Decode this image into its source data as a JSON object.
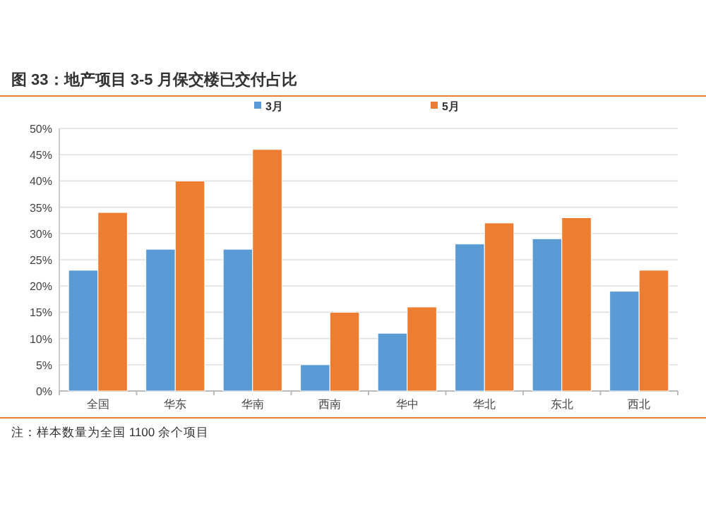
{
  "chart_data": {
    "type": "bar",
    "title": "图 33：地产项目 3-5 月保交楼已交付占比",
    "categories": [
      "全国",
      "华东",
      "华南",
      "西南",
      "华中",
      "华北",
      "东北",
      "西北"
    ],
    "series": [
      {
        "name": "3月",
        "color": "#5b9bd5",
        "values": [
          23,
          27,
          27,
          5,
          11,
          28,
          29,
          19
        ]
      },
      {
        "name": "5月",
        "color": "#ed7d31",
        "values": [
          34,
          40,
          46,
          15,
          16,
          32,
          33,
          23
        ]
      }
    ],
    "ylim": [
      0,
      50
    ],
    "yticks": [
      {
        "value": 0,
        "label": "0%"
      },
      {
        "value": 5,
        "label": "5%"
      },
      {
        "value": 10,
        "label": "10%"
      },
      {
        "value": 15,
        "label": "15%"
      },
      {
        "value": 20,
        "label": "20%"
      },
      {
        "value": 25,
        "label": "25%"
      },
      {
        "value": 30,
        "label": "30%"
      },
      {
        "value": 35,
        "label": "35%"
      },
      {
        "value": 40,
        "label": "40%"
      },
      {
        "value": 45,
        "label": "45%"
      },
      {
        "value": 50,
        "label": "50%"
      }
    ],
    "grid": "y",
    "legend": "top",
    "annotations": [
      "注：样本数量为全国 1100 余个项目"
    ]
  }
}
